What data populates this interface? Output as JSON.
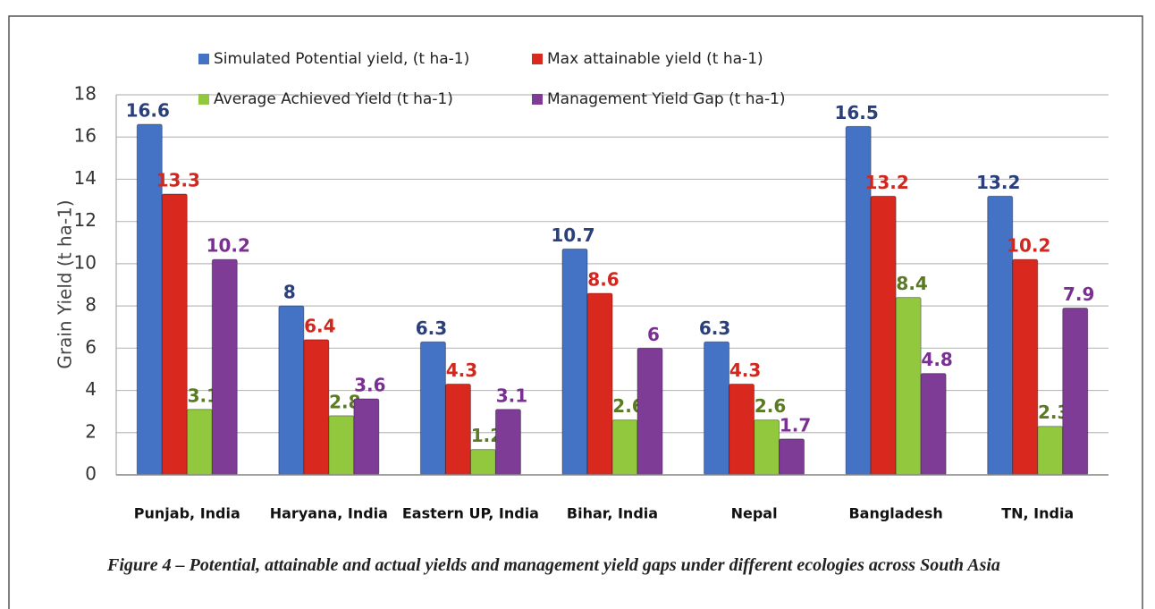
{
  "chart_data": {
    "type": "bar",
    "y_label": "Grain Yield (t ha-1)",
    "categories": [
      "Punjab, India",
      "Haryana, India",
      "Eastern UP, India",
      "Bihar, India",
      "Nepal",
      "Bangladesh",
      "TN, India"
    ],
    "series": [
      {
        "name": "Simulated Potential yield, (t ha-1)",
        "color": "#4472c4",
        "label_color": "#2b3f7a",
        "values": [
          16.6,
          8,
          6.3,
          10.7,
          6.3,
          16.5,
          13.2
        ]
      },
      {
        "name": "Max attainable yield (t ha-1)",
        "color": "#d9281e",
        "label_color": "#d0281e",
        "values": [
          13.3,
          6.4,
          4.3,
          8.6,
          4.3,
          13.2,
          10.2
        ]
      },
      {
        "name": "Average Achieved Yield  (t ha-1)",
        "color": "#92c83e",
        "label_color": "#5a7a24",
        "values": [
          3.1,
          2.8,
          1.2,
          2.6,
          2.6,
          8.4,
          2.3
        ]
      },
      {
        "name": "Management Yield Gap (t ha-1)",
        "color": "#7e3c97",
        "label_color": "#7a2f92",
        "values": [
          10.2,
          3.6,
          3.1,
          6,
          1.7,
          4.8,
          7.9
        ]
      }
    ],
    "ylim": [
      0,
      18
    ],
    "yticks": [
      0,
      2,
      4,
      6,
      8,
      10,
      12,
      14,
      16,
      18
    ],
    "grid": true,
    "caption": "Figure 4 – Potential, attainable and actual yields and management yield gaps under different ecologies across South Asia"
  }
}
